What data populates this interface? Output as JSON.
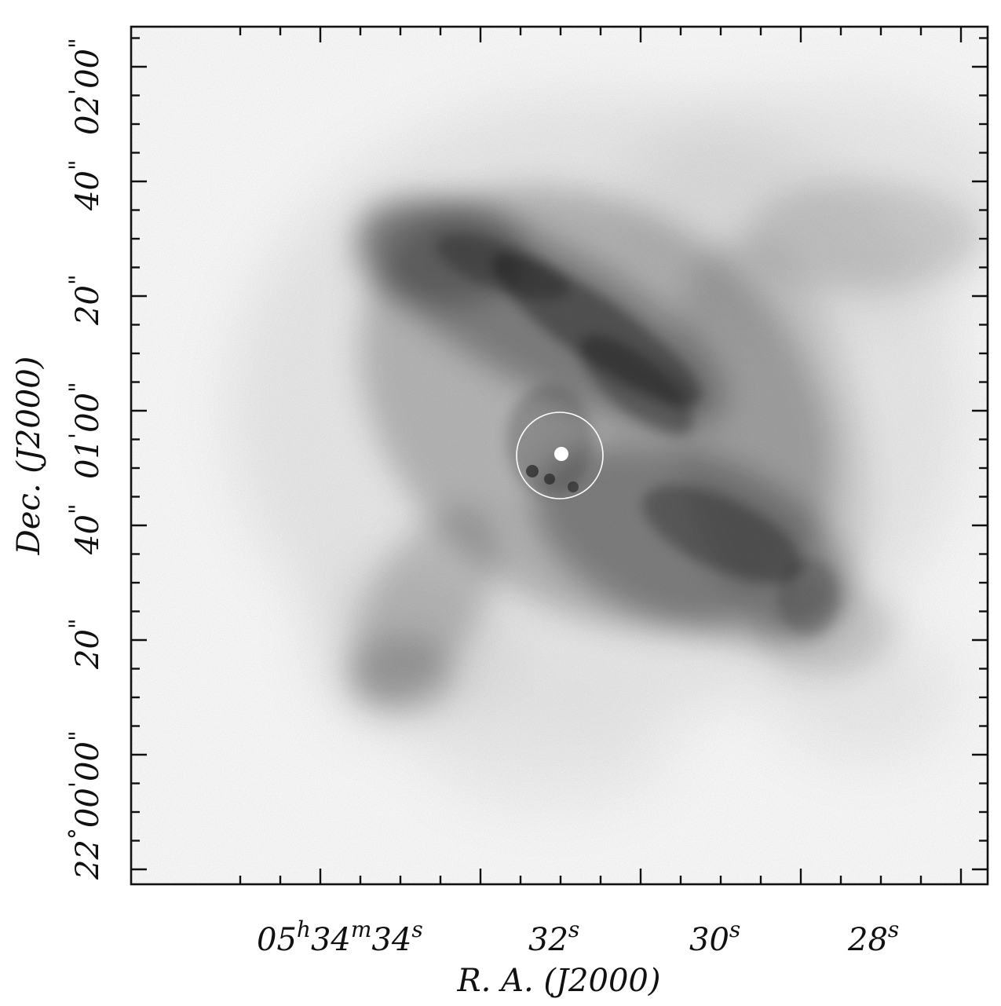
{
  "figure": {
    "ra_axis": {
      "label": "R. A. (J2000)",
      "ticks": [
        {
          "base": "05",
          "h": "h",
          "mid": "34",
          "m": "m",
          "sec": "34",
          "s": "s"
        },
        {
          "sec": "32",
          "s": "s"
        },
        {
          "sec": "30",
          "s": "s"
        },
        {
          "sec": "28",
          "s": "s"
        }
      ]
    },
    "dec_axis": {
      "label": "Dec. (J2000)",
      "ticks": [
        {
          "deg": "22",
          "degsym": "°",
          "min": "00",
          "minsym": "'",
          "sec": "00",
          "secsym": "\""
        },
        {
          "sec": "20",
          "secsym": "\""
        },
        {
          "sec": "40",
          "secsym": "\""
        },
        {
          "min": "01",
          "minsym": "'",
          "sec": "00",
          "secsym": "\""
        },
        {
          "sec": "20",
          "secsym": "\""
        },
        {
          "sec": "40",
          "secsym": "\""
        },
        {
          "min": "02",
          "minsym": "'",
          "sec": "00",
          "secsym": "\""
        }
      ]
    },
    "colors": {
      "frame": "#111111",
      "background": "#ffffff",
      "nebula": "#2b2b2b",
      "marker_circle": "#ffffff"
    }
  }
}
